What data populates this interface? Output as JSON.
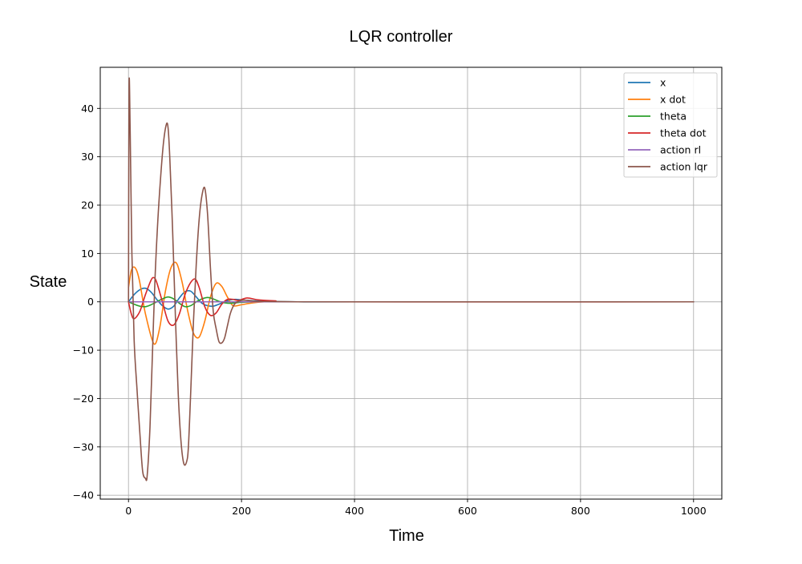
{
  "chart_data": {
    "type": "line",
    "title": "LQR controller",
    "xlabel": "Time",
    "ylabel": "State",
    "xlim": [
      -50,
      1050
    ],
    "ylim": [
      -40.8,
      48.5
    ],
    "xticks": [
      0,
      200,
      400,
      600,
      800,
      1000
    ],
    "yticks": [
      -40,
      -30,
      -20,
      -10,
      0,
      10,
      20,
      30,
      40
    ],
    "grid": true,
    "legend_position": "top-right",
    "series": [
      {
        "name": "x",
        "color": "#1f77b4",
        "x": [
          0,
          10,
          20,
          30,
          40,
          50,
          60,
          70,
          80,
          90,
          100,
          110,
          120,
          130,
          140,
          150,
          160,
          170,
          180,
          190,
          200,
          225,
          250,
          300,
          400,
          1000
        ],
        "y": [
          0,
          1.5,
          2.5,
          2.8,
          2.0,
          0.5,
          -0.8,
          -1.5,
          -0.9,
          0.8,
          2.1,
          2.2,
          1.0,
          -0.3,
          -0.8,
          -0.9,
          -0.5,
          0,
          0.4,
          0.5,
          0.4,
          0.2,
          0.1,
          0,
          0,
          0
        ]
      },
      {
        "name": "x dot",
        "color": "#ff7f0e",
        "x": [
          0,
          5,
          10,
          15,
          20,
          30,
          45,
          55,
          65,
          75,
          85,
          95,
          105,
          115,
          125,
          135,
          145,
          155,
          165,
          175,
          185,
          200,
          215,
          240,
          300,
          400,
          1000
        ],
        "y": [
          3.0,
          6.5,
          7.2,
          6.3,
          4.0,
          -2.5,
          -8.7,
          -5.5,
          2.0,
          7.0,
          8.0,
          4.0,
          -2.0,
          -6.5,
          -7.3,
          -4.0,
          1.0,
          3.8,
          3.2,
          1.0,
          -0.8,
          -0.6,
          -0.3,
          0,
          0,
          0,
          0
        ]
      },
      {
        "name": "theta",
        "color": "#2ca02c",
        "x": [
          0,
          10,
          20,
          30,
          40,
          50,
          60,
          70,
          80,
          90,
          100,
          110,
          120,
          130,
          140,
          150,
          160,
          170,
          180,
          190,
          200,
          220,
          250,
          300,
          1000
        ],
        "y": [
          0,
          -0.5,
          -0.9,
          -1.0,
          -0.6,
          0,
          0.6,
          1.0,
          0.6,
          -0.3,
          -1.0,
          -0.8,
          0,
          0.6,
          0.9,
          0.6,
          0.1,
          -0.2,
          -0.3,
          -0.2,
          -0.1,
          0,
          0,
          0,
          0
        ]
      },
      {
        "name": "theta dot",
        "color": "#d62728",
        "x": [
          0,
          5,
          10,
          20,
          30,
          40,
          45,
          50,
          60,
          70,
          80,
          90,
          100,
          110,
          118,
          125,
          135,
          145,
          155,
          165,
          175,
          185,
          195,
          210,
          230,
          260,
          300,
          1000
        ],
        "y": [
          0,
          -2.5,
          -3.5,
          -2.0,
          1.5,
          4.5,
          5.0,
          4.0,
          0,
          -4.0,
          -4.8,
          -2.5,
          1.5,
          4.0,
          4.7,
          3.0,
          -1.0,
          -2.8,
          -2.3,
          -0.5,
          0.5,
          0.5,
          0.3,
          0.8,
          0.4,
          0.2,
          0,
          0
        ]
      },
      {
        "name": "action rl",
        "color": "#9467bd",
        "x": [
          0,
          1000
        ],
        "y": [
          0,
          0
        ]
      },
      {
        "name": "action lqr",
        "color": "#8c564b",
        "x": [
          0,
          1,
          3,
          6,
          10,
          15,
          20,
          25,
          30,
          33,
          38,
          42,
          47,
          52,
          57,
          62,
          67,
          70,
          73,
          78,
          83,
          88,
          93,
          98,
          103,
          106,
          110,
          115,
          120,
          125,
          130,
          135,
          140,
          145,
          150,
          155,
          160,
          165,
          170,
          175,
          180,
          185,
          190,
          200,
          210,
          225,
          250,
          300,
          400,
          1000
        ],
        "y": [
          0,
          44.6,
          35,
          10,
          -8,
          -18,
          -27,
          -35,
          -36.5,
          -36,
          -26,
          -12,
          5,
          17,
          26,
          33,
          36.7,
          36,
          30,
          15,
          -3,
          -19,
          -29,
          -33.5,
          -33,
          -30,
          -19,
          -4,
          8,
          17,
          22,
          23.5,
          18,
          7,
          -2,
          -5.5,
          -8.2,
          -8.5,
          -7.5,
          -5,
          -2.5,
          -1,
          -0.2,
          0.3,
          0.3,
          0.1,
          0.05,
          0,
          0,
          0
        ]
      }
    ]
  }
}
